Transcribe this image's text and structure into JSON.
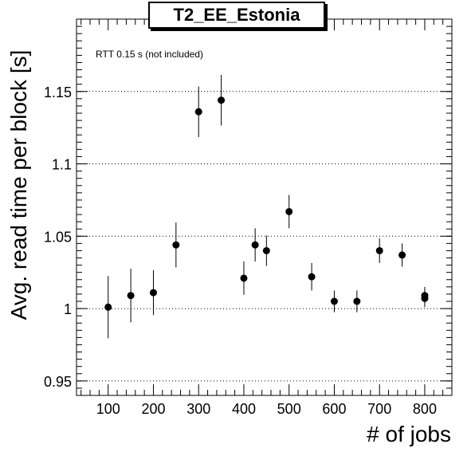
{
  "chart_data": {
    "type": "scatter",
    "title": "T2_EE_Estonia",
    "xlabel": "# of jobs",
    "ylabel": "Avg. read time per block [s]",
    "annotation": "RTT 0.15 s (not included)",
    "xlim": [
      30,
      860
    ],
    "ylim": [
      0.94,
      1.2
    ],
    "xticks": [
      100,
      200,
      300,
      400,
      500,
      600,
      700,
      800
    ],
    "yticks": [
      0.95,
      1,
      1.05,
      1.1,
      1.15
    ],
    "ytick_labels": [
      "0.95",
      "1",
      "1.05",
      "1.1",
      "1.15"
    ],
    "grid": "horizontal-dotted",
    "series": [
      {
        "points": [
          {
            "x": 100,
            "y": 1.001,
            "err": 0.0215
          },
          {
            "x": 150,
            "y": 1.009,
            "err": 0.0185
          },
          {
            "x": 200,
            "y": 1.011,
            "err": 0.0155
          },
          {
            "x": 250,
            "y": 1.044,
            "err": 0.0155
          },
          {
            "x": 300,
            "y": 1.136,
            "err": 0.0175
          },
          {
            "x": 350,
            "y": 1.144,
            "err": 0.0175
          },
          {
            "x": 400,
            "y": 1.021,
            "err": 0.0115
          },
          {
            "x": 425,
            "y": 1.044,
            "err": 0.0115
          },
          {
            "x": 450,
            "y": 1.04,
            "err": 0.0105
          },
          {
            "x": 500,
            "y": 1.067,
            "err": 0.0115
          },
          {
            "x": 550,
            "y": 1.022,
            "err": 0.0095
          },
          {
            "x": 600,
            "y": 1.005,
            "err": 0.0075
          },
          {
            "x": 650,
            "y": 1.005,
            "err": 0.0075
          },
          {
            "x": 700,
            "y": 1.04,
            "err": 0.0085
          },
          {
            "x": 750,
            "y": 1.037,
            "err": 0.008
          },
          {
            "x": 800,
            "y": 1.007,
            "err": 0.006
          },
          {
            "x": 800,
            "y": 1.009,
            "err": 0.006
          }
        ]
      }
    ]
  }
}
